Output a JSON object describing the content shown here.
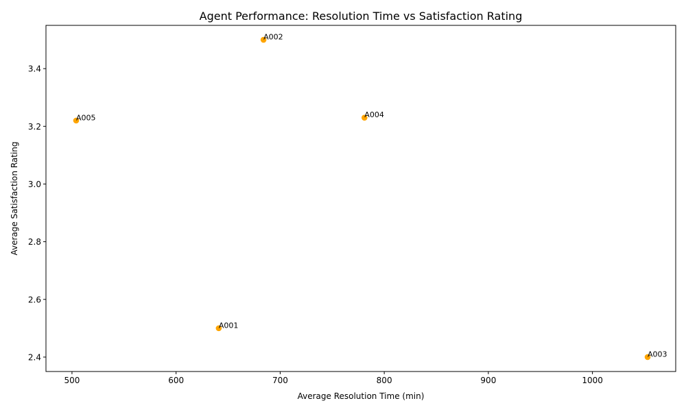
{
  "chart_data": {
    "type": "scatter",
    "title": "Agent Performance: Resolution Time vs Satisfaction Rating",
    "xlabel": "Average Resolution Time (min)",
    "ylabel": "Average Satisfaction Rating",
    "xlim": [
      475,
      1080
    ],
    "ylim": [
      2.35,
      3.55
    ],
    "xticks": [
      500,
      600,
      700,
      800,
      900,
      1000
    ],
    "yticks": [
      2.4,
      2.6,
      2.8,
      3.0,
      3.2,
      3.4
    ],
    "ytick_labels": [
      "2.4",
      "2.6",
      "2.8",
      "3.0",
      "3.2",
      "3.4"
    ],
    "grid": false,
    "point_color": "#ffa500",
    "points": [
      {
        "label": "A001",
        "x": 641,
        "y": 2.5
      },
      {
        "label": "A002",
        "x": 684,
        "y": 3.5
      },
      {
        "label": "A003",
        "x": 1053,
        "y": 2.4
      },
      {
        "label": "A004",
        "x": 781,
        "y": 3.23
      },
      {
        "label": "A005",
        "x": 504,
        "y": 3.22
      }
    ]
  }
}
